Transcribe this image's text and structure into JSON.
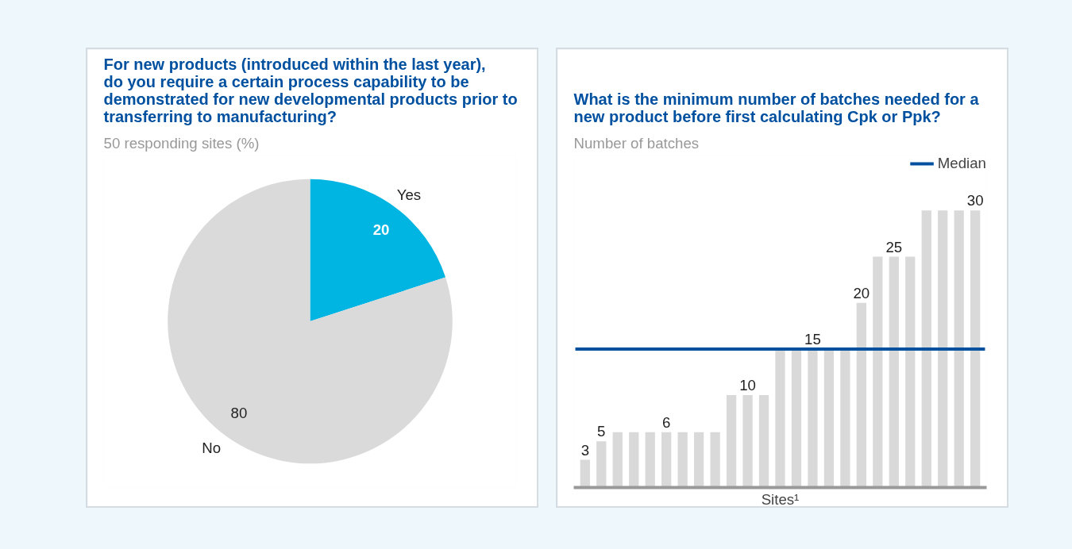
{
  "chart_data": [
    {
      "type": "pie",
      "title": "For new products (introduced within the last year), do you require a certain process capability to be demonstrated for new developmental products prior to transferring to manufacturing?",
      "subtitle": "50 responding sites (%)",
      "categories": [
        "Yes",
        "No"
      ],
      "values": [
        20,
        80
      ],
      "colors": [
        "#00b5e2",
        "#dadadb"
      ],
      "data_labels": true
    },
    {
      "type": "bar",
      "title": "What is the minimum number of batches needed  for a new product before first calculating Cpk or Ppk?",
      "ylabel": "Number of batches",
      "xlabel": "Sites¹",
      "categories": [
        null,
        null,
        null,
        null,
        null,
        null,
        null,
        null,
        null,
        null,
        null,
        null,
        null,
        null,
        null,
        null,
        null,
        null,
        null,
        null,
        null,
        null,
        null,
        null,
        null
      ],
      "values": [
        3,
        5,
        6,
        6,
        6,
        6,
        6,
        6,
        6,
        10,
        10,
        10,
        15,
        15,
        15,
        15,
        15,
        20,
        25,
        25,
        25,
        30,
        30,
        30,
        30
      ],
      "value_labels": [
        "3",
        "5",
        null,
        null,
        null,
        "6",
        null,
        null,
        null,
        null,
        "10",
        null,
        null,
        null,
        "15",
        null,
        null,
        "20",
        null,
        "25",
        null,
        null,
        null,
        null,
        "30"
      ],
      "color": "#d9d9d9",
      "ylim": [
        0,
        36
      ],
      "tick_labels": false,
      "grid": false,
      "legend": "top right",
      "ref_lines": [
        {
          "axis": "y",
          "value": 15,
          "label": "Median",
          "color": "#0050a0"
        }
      ]
    }
  ]
}
